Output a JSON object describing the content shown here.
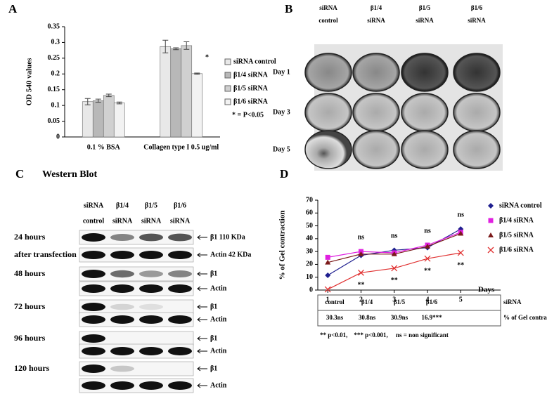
{
  "chart_data": [
    {
      "type": "bar",
      "ylabel": "OD 540 values",
      "categories": [
        "0.1 % BSA",
        "Collagen type I  0.5 ug/ml"
      ],
      "series": [
        {
          "name": "siRNA control",
          "color": "#e8e8e8",
          "values": [
            0.112,
            0.287
          ],
          "errors": [
            0.01,
            0.02
          ]
        },
        {
          "name": "β1/4 siRNA",
          "color": "#b8b8b8",
          "values": [
            0.115,
            0.28
          ],
          "errors": [
            0.005,
            0.003
          ]
        },
        {
          "name": "β1/5 siRNA",
          "color": "#d0d0d0",
          "values": [
            0.132,
            0.29
          ],
          "errors": [
            0.004,
            0.012
          ]
        },
        {
          "name": "β1/6 siRNA",
          "color": "#f2f2f2",
          "values": [
            0.108,
            0.201
          ],
          "errors": [
            0.003,
            0.002
          ]
        }
      ],
      "ylim": [
        0,
        0.35
      ],
      "yticks": [
        0,
        0.05,
        0.1,
        0.15,
        0.2,
        0.25,
        0.3,
        0.35
      ],
      "annotation": "*",
      "note": "* = P<0.05"
    },
    {
      "type": "line",
      "ylabel": "% of Gel contraction",
      "xlabel": "Days",
      "x": [
        1,
        2,
        3,
        4,
        5
      ],
      "series": [
        {
          "name": "siRNA control",
          "color": "#1f1f8f",
          "marker": "diamond",
          "values": [
            11.5,
            27,
            31,
            33,
            47.5
          ]
        },
        {
          "name": "β1/4 siRNA",
          "color": "#e020e0",
          "marker": "square",
          "values": [
            25.5,
            30,
            29,
            35,
            45
          ]
        },
        {
          "name": "β1/5 siRNA",
          "color": "#7b1a1a",
          "marker": "triangle",
          "values": [
            21.5,
            28,
            28,
            34,
            44
          ]
        },
        {
          "name": "β1/6 siRNA",
          "color": "#e03030",
          "marker": "x",
          "values": [
            0.5,
            13.5,
            17,
            24.5,
            29
          ]
        }
      ],
      "annotations": {
        "above": [
          null,
          "ns",
          "ns",
          "ns",
          "ns"
        ],
        "below": [
          null,
          "**",
          "**",
          "**",
          "**"
        ]
      },
      "xlim": [
        0.7,
        6.2
      ],
      "xticks": [
        1,
        2,
        3,
        4,
        5
      ],
      "ylim": [
        0,
        70
      ],
      "yticks": [
        0,
        10,
        20,
        30,
        40,
        50,
        60,
        70
      ]
    }
  ],
  "panel_labels": [
    "A",
    "B",
    "C",
    "D"
  ],
  "plates": {
    "columns": [
      [
        "siRNA",
        "control"
      ],
      [
        "β1/4",
        "siRNA"
      ],
      [
        "β1/5",
        "siRNA"
      ],
      [
        "β1/6",
        "siRNA"
      ]
    ],
    "rows": [
      "Day 1",
      "Day 3",
      "Day 5"
    ]
  },
  "blot": {
    "title": "Western Blot",
    "columns": [
      [
        "siRNA",
        "control"
      ],
      [
        "β1/4",
        "siRNA"
      ],
      [
        "β1/5",
        "siRNA"
      ],
      [
        "β1/6",
        "siRNA"
      ]
    ],
    "rows": [
      {
        "time": "24 hours",
        "band": "β1 110 KDa"
      },
      {
        "time": "after transfection",
        "band": "Actin 42 KDa"
      },
      {
        "time": "48 hours",
        "band": "β1"
      },
      {
        "band": "Actin"
      },
      {
        "time": "72 hours",
        "band": "β1"
      },
      {
        "band": "Actin"
      },
      {
        "time": "96 hours",
        "band": "β1"
      },
      {
        "band": "Actin"
      },
      {
        "time": "120 hours",
        "band": "β1"
      },
      {
        "band": "Actin"
      }
    ]
  },
  "table": {
    "header": [
      "control",
      "β1/4",
      "β1/5",
      "β1/6",
      "siRNA"
    ],
    "row": [
      "30.3ns",
      "30.8ns",
      "30.9ns",
      "16.9***",
      "% of Gel contraction"
    ],
    "footnote": "** p<0.01,    *** p<0.001,     ns = non significant"
  }
}
